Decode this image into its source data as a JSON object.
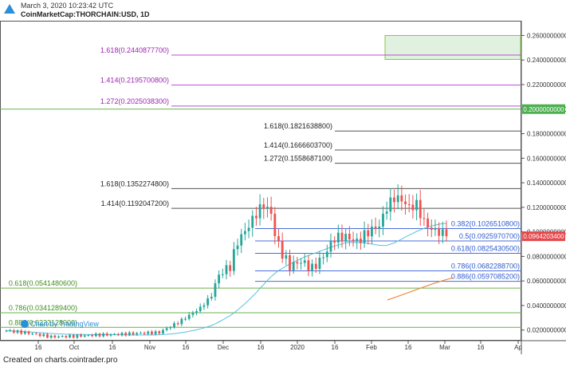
{
  "header": {
    "date": "March 3, 2020 10:23:42 UTC",
    "symbol": "CoinMarketCap:THORCHAIN:USD, 1D"
  },
  "footer": "Created on charts.cointrader.pro",
  "watermark": "Chart by TradingView",
  "chart_data": {
    "type": "candlestick",
    "title": "",
    "ylim": [
      0.012,
      0.272
    ],
    "y_ticks": [
      "0.2600000000",
      "0.2400000000",
      "0.2200000000",
      "0.2000000000",
      "0.1800000000",
      "0.1600000000",
      "0.1400000000",
      "0.1200000000",
      "0.1000000000",
      "0.0800000000",
      "0.0600000000",
      "0.0400000000",
      "0.0200000000"
    ],
    "x_ticks": [
      "16",
      "Oct",
      "16",
      "Nov",
      "16",
      "Dec",
      "16",
      "2020",
      "16",
      "Feb",
      "16",
      "Mar",
      "16",
      "Ap"
    ],
    "price_badges": [
      {
        "value": 0.2,
        "label": "0.2000000000",
        "color": "#4caf50"
      },
      {
        "value": 0.09642,
        "label": "0.0964203400",
        "color": "#e5484d"
      }
    ],
    "fib_levels": [
      {
        "label": "1.618(0.2440877700)",
        "value": 0.24409,
        "color": "#b84fd1",
        "label_color": "#9c27b0"
      },
      {
        "label": "1.414(0.2195700800)",
        "value": 0.21957,
        "color": "#b84fd1",
        "label_color": "#9c27b0"
      },
      {
        "label": "1.272(0.2025038300)",
        "value": 0.2025,
        "color": "#b84fd1",
        "label_color": "#9c27b0"
      },
      {
        "label": "1.618(0.1821638800)",
        "value": 0.18216,
        "color": "#555555",
        "label_color": "#222222"
      },
      {
        "label": "1.414(0.1666603700)",
        "value": 0.16666,
        "color": "#555555",
        "label_color": "#222222"
      },
      {
        "label": "1.272(0.1558687100)",
        "value": 0.15587,
        "color": "#555555",
        "label_color": "#222222"
      },
      {
        "label": "1.618(0.1352274800)",
        "value": 0.13523,
        "color": "#555555",
        "label_color": "#222222"
      },
      {
        "label": "1.414(0.1192047200)",
        "value": 0.1192,
        "color": "#555555",
        "label_color": "#222222"
      },
      {
        "label": "0.382(0.1026510800)",
        "value": 0.10265,
        "color": "#4a6fd8",
        "label_color": "#2f5bd1"
      },
      {
        "label": "0.5(0.0925970700)",
        "value": 0.0926,
        "color": "#4a6fd8",
        "label_color": "#2f5bd1"
      },
      {
        "label": "0.618(0.0825430500)",
        "value": 0.08254,
        "color": "#4a6fd8",
        "label_color": "#2f5bd1"
      },
      {
        "label": "0.786(0.0682288700)",
        "value": 0.06823,
        "color": "#4a6fd8",
        "label_color": "#2f5bd1"
      },
      {
        "label": "0.886(0.0597085200)",
        "value": 0.05971,
        "color": "#4a6fd8",
        "label_color": "#2f5bd1"
      },
      {
        "label": "0.618(0.0541480600)",
        "value": 0.05415,
        "color": "#6ab04c",
        "label_color": "#3e8e1f"
      },
      {
        "label": "0.786(0.0341289400)",
        "value": 0.03413,
        "color": "#6ab04c",
        "label_color": "#3e8e1f"
      },
      {
        "label": "0.886(0.0222128000)",
        "value": 0.02221,
        "color": "#6ab04c",
        "label_color": "#3e8e1f"
      }
    ],
    "horizontal_lines": [
      {
        "value": 0.2,
        "color": "#6ab04c"
      }
    ],
    "target_zone": {
      "y_range": [
        0.2405,
        0.26
      ],
      "color": "#a5d6a7"
    },
    "ma_colors": {
      "blue": "#5bc0de",
      "orange": "#f0883e"
    },
    "candle_colors": {
      "up": "#26a69a",
      "down": "#ef5350"
    },
    "candle_waypoints": [
      [
        0,
        0.0195
      ],
      [
        6,
        0.0175
      ],
      [
        12,
        0.0145
      ],
      [
        18,
        0.015
      ],
      [
        24,
        0.016
      ],
      [
        30,
        0.0165
      ],
      [
        36,
        0.0175
      ],
      [
        41,
        0.018
      ],
      [
        44,
        0.023
      ],
      [
        46,
        0.026
      ],
      [
        49,
        0.032
      ],
      [
        52,
        0.038
      ],
      [
        55,
        0.048
      ],
      [
        57,
        0.065
      ],
      [
        60,
        0.072
      ],
      [
        62,
        0.092
      ],
      [
        65,
        0.105
      ],
      [
        67,
        0.115
      ],
      [
        69,
        0.122
      ],
      [
        71,
        0.115
      ],
      [
        72,
        0.098
      ],
      [
        74,
        0.082
      ],
      [
        76,
        0.072
      ],
      [
        79,
        0.076
      ],
      [
        82,
        0.07
      ],
      [
        85,
        0.08
      ],
      [
        88,
        0.095
      ],
      [
        91,
        0.096
      ],
      [
        94,
        0.092
      ],
      [
        97,
        0.1
      ],
      [
        100,
        0.105
      ],
      [
        102,
        0.12
      ],
      [
        104,
        0.128
      ],
      [
        106,
        0.126
      ],
      [
        108,
        0.12
      ],
      [
        110,
        0.122
      ],
      [
        112,
        0.108
      ],
      [
        114,
        0.102
      ],
      [
        116,
        0.1
      ],
      [
        118,
        0.0964
      ]
    ]
  }
}
